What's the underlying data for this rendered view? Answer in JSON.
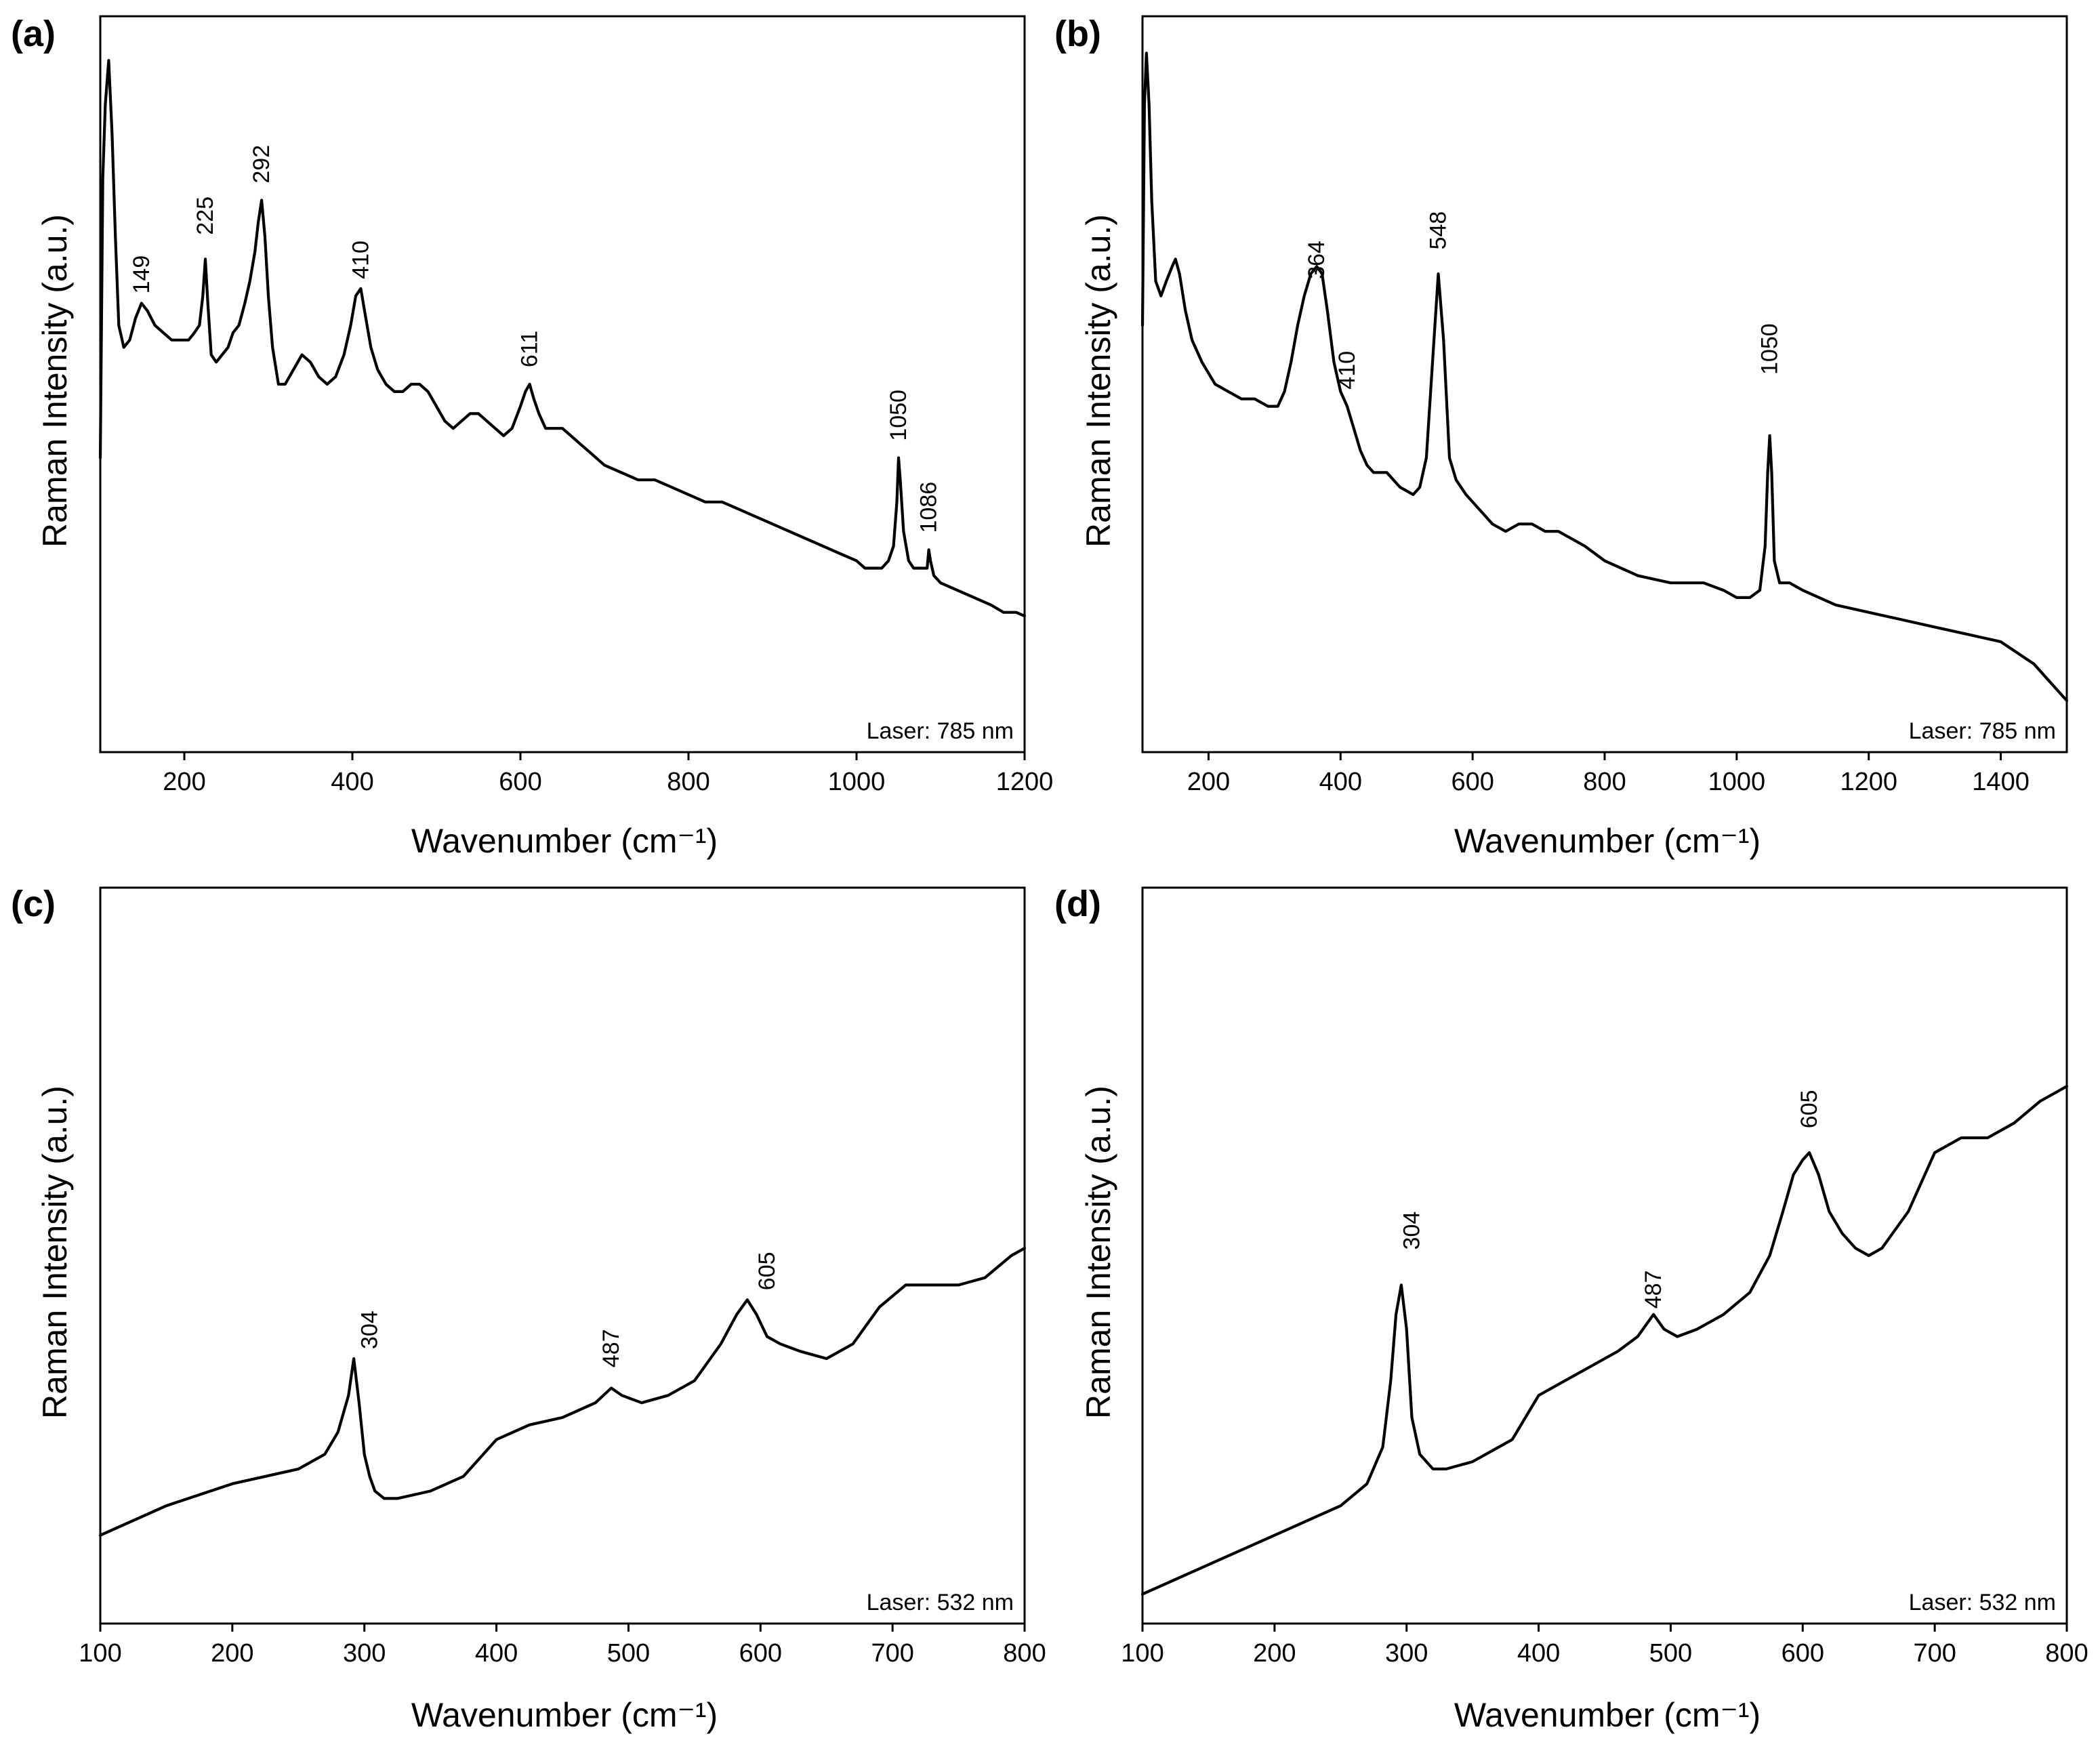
{
  "chart_data": [
    {
      "id": "a",
      "type": "line",
      "panel_label": "(a)",
      "xlabel": "Wavenumber (cm⁻¹)",
      "ylabel": "Raman Intensity (a.u.)",
      "xlim": [
        100,
        1200
      ],
      "ylim": [
        0,
        100
      ],
      "xticks": [
        200,
        400,
        600,
        800,
        1000,
        1200
      ],
      "laser": "Laser: 785 nm",
      "peak_labels": [
        {
          "text": "149",
          "x": 149,
          "y": 61
        },
        {
          "text": "225",
          "x": 225,
          "y": 69
        },
        {
          "text": "292",
          "x": 292,
          "y": 76
        },
        {
          "text": "410",
          "x": 410,
          "y": 63
        },
        {
          "text": "611",
          "x": 611,
          "y": 51
        },
        {
          "text": "1050",
          "x": 1050,
          "y": 41
        },
        {
          "text": "1086",
          "x": 1086,
          "y": 28.5
        }
      ],
      "series": [
        {
          "name": "spectrum",
          "x": [
            100,
            103,
            106,
            110,
            114,
            118,
            122,
            128,
            135,
            142,
            149,
            156,
            165,
            175,
            185,
            195,
            205,
            212,
            218,
            222,
            225,
            228,
            232,
            238,
            245,
            252,
            258,
            265,
            272,
            278,
            284,
            288,
            292,
            296,
            300,
            305,
            312,
            320,
            330,
            340,
            350,
            360,
            370,
            380,
            390,
            398,
            404,
            410,
            416,
            422,
            430,
            440,
            450,
            460,
            470,
            480,
            490,
            500,
            510,
            520,
            530,
            540,
            550,
            560,
            570,
            580,
            590,
            600,
            606,
            611,
            616,
            622,
            630,
            640,
            650,
            660,
            670,
            680,
            690,
            700,
            720,
            740,
            760,
            780,
            800,
            820,
            840,
            860,
            880,
            900,
            920,
            940,
            960,
            980,
            1000,
            1010,
            1020,
            1030,
            1038,
            1044,
            1048,
            1050,
            1052,
            1056,
            1062,
            1068,
            1074,
            1080,
            1084,
            1086,
            1088,
            1092,
            1100,
            1120,
            1140,
            1160,
            1175,
            1180,
            1190,
            1200
          ],
          "y": [
            40,
            78,
            88,
            94,
            84,
            70,
            58,
            55,
            56,
            59,
            61,
            60,
            58,
            57,
            56,
            56,
            56,
            57,
            58,
            62,
            67,
            61,
            54,
            53,
            54,
            55,
            57,
            58,
            61,
            64,
            68,
            72,
            75,
            70,
            62,
            55,
            50,
            50,
            52,
            54,
            53,
            51,
            50,
            51,
            54,
            58,
            62,
            63,
            59,
            55,
            52,
            50,
            49,
            49,
            50,
            50,
            49,
            47,
            45,
            44,
            45,
            46,
            46,
            45,
            44,
            43,
            44,
            47,
            49,
            50,
            48,
            46,
            44,
            44,
            44,
            43,
            42,
            41,
            40,
            39,
            38,
            37,
            37,
            36,
            35,
            34,
            34,
            33,
            32,
            31,
            30,
            29,
            28,
            27,
            26,
            25,
            25,
            25,
            26,
            28,
            34,
            40,
            37,
            30,
            26,
            25,
            25,
            25,
            25,
            27.5,
            26,
            24,
            23,
            22,
            21,
            20,
            19,
            19,
            19,
            18.5
          ]
        }
      ]
    },
    {
      "id": "b",
      "type": "line",
      "panel_label": "(b)",
      "xlabel": "Wavenumber (cm⁻¹)",
      "ylabel": "Raman Intensity (a.u.)",
      "xlim": [
        100,
        1500
      ],
      "ylim": [
        0,
        100
      ],
      "xticks": [
        200,
        400,
        600,
        800,
        1000,
        1200,
        1400
      ],
      "laser": "Laser: 785 nm",
      "peak_labels": [
        {
          "text": "364",
          "x": 364,
          "y": 63
        },
        {
          "text": "410",
          "x": 410,
          "y": 48
        },
        {
          "text": "548",
          "x": 548,
          "y": 67
        },
        {
          "text": "1050",
          "x": 1050,
          "y": 50
        }
      ],
      "series": [
        {
          "name": "spectrum",
          "x": [
            100,
            103,
            106,
            110,
            114,
            120,
            128,
            136,
            145,
            150,
            156,
            165,
            175,
            190,
            210,
            230,
            250,
            270,
            290,
            305,
            315,
            325,
            335,
            345,
            355,
            364,
            372,
            380,
            390,
            400,
            410,
            420,
            430,
            440,
            450,
            470,
            490,
            510,
            520,
            530,
            540,
            548,
            556,
            565,
            575,
            590,
            610,
            630,
            650,
            670,
            690,
            710,
            730,
            750,
            770,
            800,
            850,
            900,
            950,
            980,
            1000,
            1020,
            1035,
            1043,
            1047,
            1050,
            1053,
            1057,
            1065,
            1080,
            1100,
            1150,
            1200,
            1250,
            1300,
            1350,
            1400,
            1450,
            1480,
            1500
          ],
          "y": [
            58,
            88,
            95,
            88,
            75,
            64,
            62,
            64,
            66,
            67,
            65,
            60,
            56,
            53,
            50,
            49,
            48,
            48,
            47,
            47,
            49,
            53,
            58,
            62,
            65,
            66,
            65,
            60,
            53,
            49,
            47,
            44,
            41,
            39,
            38,
            38,
            36,
            35,
            36,
            40,
            54,
            65,
            56,
            40,
            37,
            35,
            33,
            31,
            30,
            31,
            31,
            30,
            30,
            29,
            28,
            26,
            24,
            23,
            23,
            22,
            21,
            21,
            22,
            28,
            38,
            43,
            38,
            26,
            23,
            23,
            22,
            20,
            19,
            18,
            17,
            16,
            15,
            12,
            9,
            7
          ]
        }
      ]
    },
    {
      "id": "c",
      "type": "line",
      "panel_label": "(c)",
      "xlabel": "Wavenumber (cm⁻¹)",
      "ylabel": "Raman Intensity (a.u.)",
      "xlim": [
        100,
        800
      ],
      "ylim": [
        0,
        100
      ],
      "xticks": [
        100,
        200,
        300,
        400,
        500,
        600,
        700,
        800
      ],
      "laser": "Laser: 532 nm",
      "peak_labels": [
        {
          "text": "304",
          "x": 304,
          "y": 36
        },
        {
          "text": "487",
          "x": 487,
          "y": 33.5
        },
        {
          "text": "605",
          "x": 605,
          "y": 44
        }
      ],
      "series": [
        {
          "name": "spectrum",
          "x": [
            100,
            150,
            200,
            250,
            270,
            280,
            288,
            292,
            296,
            300,
            304,
            308,
            315,
            325,
            350,
            375,
            400,
            425,
            450,
            475,
            487,
            495,
            510,
            530,
            550,
            570,
            582,
            590,
            597,
            605,
            615,
            630,
            650,
            670,
            690,
            710,
            730,
            750,
            770,
            790,
            800
          ],
          "y": [
            12,
            16,
            19,
            21,
            23,
            26,
            31,
            36,
            30,
            23,
            20,
            18,
            17,
            17,
            18,
            20,
            25,
            27,
            28,
            30,
            32,
            31,
            30,
            31,
            33,
            38,
            42,
            44,
            42,
            39,
            38,
            37,
            36,
            38,
            43,
            46,
            46,
            46,
            47,
            50,
            51
          ]
        }
      ]
    },
    {
      "id": "d",
      "type": "line",
      "panel_label": "(d)",
      "xlabel": "Wavenumber (cm⁻¹)",
      "ylabel": "Raman Intensity (a.u.)",
      "xlim": [
        100,
        800
      ],
      "ylim": [
        0,
        100
      ],
      "xticks": [
        100,
        200,
        300,
        400,
        500,
        600,
        700,
        800
      ],
      "laser": "Laser: 532 nm",
      "peak_labels": [
        {
          "text": "304",
          "x": 304,
          "y": 49.5
        },
        {
          "text": "487",
          "x": 487,
          "y": 41.5
        },
        {
          "text": "605",
          "x": 605,
          "y": 66
        }
      ],
      "series": [
        {
          "name": "spectrum",
          "x": [
            100,
            150,
            200,
            250,
            270,
            282,
            288,
            292,
            296,
            300,
            304,
            310,
            320,
            330,
            350,
            380,
            400,
            420,
            440,
            460,
            475,
            487,
            495,
            505,
            520,
            540,
            560,
            575,
            585,
            593,
            600,
            605,
            612,
            620,
            630,
            640,
            650,
            660,
            680,
            700,
            720,
            740,
            760,
            780,
            800
          ],
          "y": [
            4,
            8,
            12,
            16,
            19,
            24,
            33,
            42,
            46,
            40,
            28,
            23,
            21,
            21,
            22,
            25,
            31,
            33,
            35,
            37,
            39,
            42,
            40,
            39,
            40,
            42,
            45,
            50,
            56,
            61,
            63,
            64,
            61,
            56,
            53,
            51,
            50,
            51,
            56,
            64,
            66,
            66,
            68,
            71,
            73
          ]
        }
      ]
    }
  ]
}
